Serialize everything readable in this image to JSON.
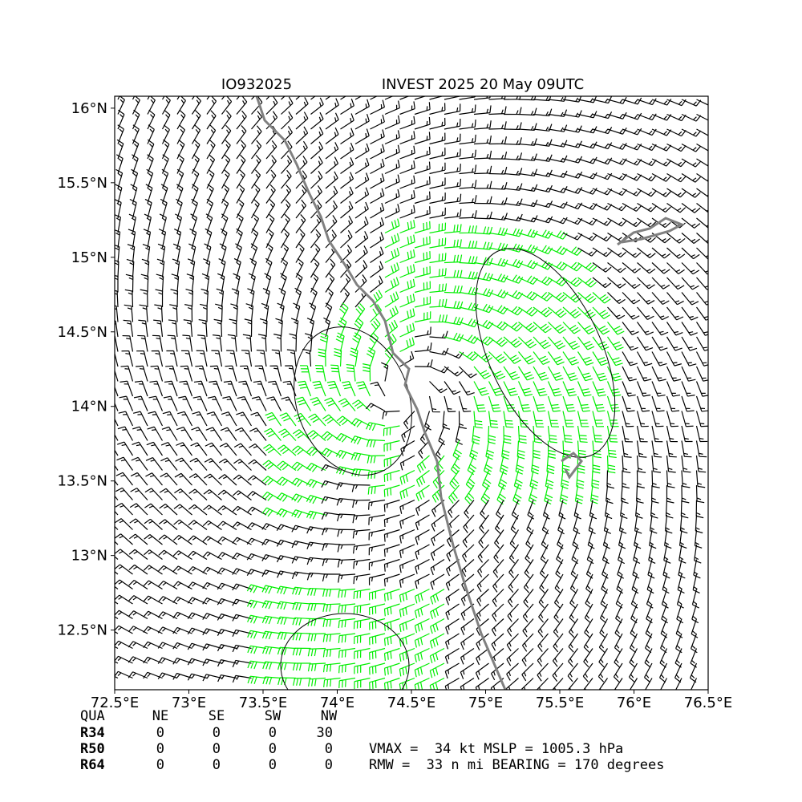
{
  "chart_data": {
    "type": "barbs",
    "storm_id": "IO932025",
    "title": "INVEST 2025 20 May 09UTC",
    "xlim": [
      72.5,
      76.5
    ],
    "ylim": [
      12.1,
      16.08
    ],
    "xticks": [
      {
        "value": 72.5,
        "label": "72.5°E"
      },
      {
        "value": 73,
        "label": "73°E"
      },
      {
        "value": 73.5,
        "label": "73.5°E"
      },
      {
        "value": 74,
        "label": "74°E"
      },
      {
        "value": 74.5,
        "label": "74.5°E"
      },
      {
        "value": 75,
        "label": "75°E"
      },
      {
        "value": 75.5,
        "label": "75.5°E"
      },
      {
        "value": 76,
        "label": "76°E"
      },
      {
        "value": 76.5,
        "label": "76.5°E"
      }
    ],
    "yticks": [
      {
        "value": 12.5,
        "label": "12.5°N"
      },
      {
        "value": 13,
        "label": "13°N"
      },
      {
        "value": 13.5,
        "label": "13.5°N"
      },
      {
        "value": 14,
        "label": "14°N"
      },
      {
        "value": 14.5,
        "label": "14.5°N"
      },
      {
        "value": 15,
        "label": "15°N"
      },
      {
        "value": 15.5,
        "label": "15.5°N"
      },
      {
        "value": 16,
        "label": "16°N"
      }
    ]
  },
  "table": {
    "header": [
      "QUA",
      "NE",
      "SE",
      "SW",
      "NW"
    ],
    "rows": [
      [
        "R34",
        0,
        0,
        0,
        30
      ],
      [
        "R50",
        0,
        0,
        0,
        0
      ],
      [
        "R64",
        0,
        0,
        0,
        0
      ]
    ]
  },
  "summary": [
    "VMAX =  34 kt MSLP = 1005.3 hPa",
    "RMW =  33 n mi BEARING = 170 degrees"
  ]
}
